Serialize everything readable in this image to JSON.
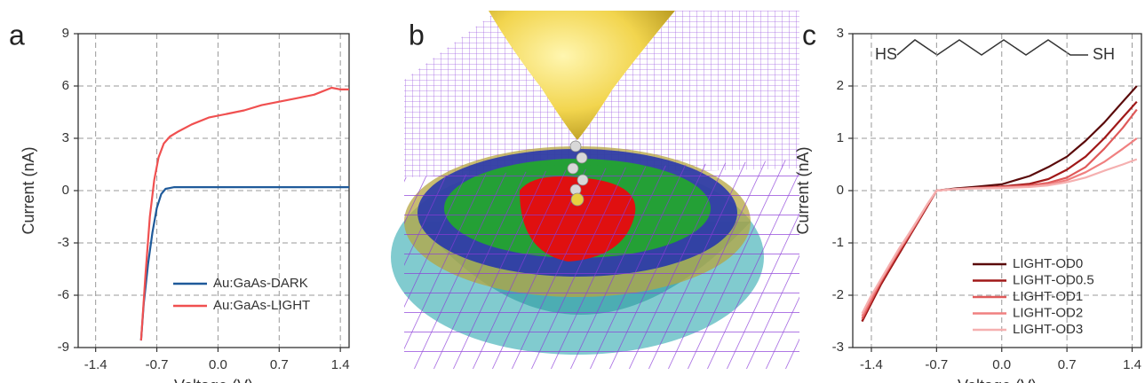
{
  "chart_data": [
    {
      "type": "line",
      "panel_label": "a",
      "x_label": "Voltage (V)",
      "y_label": "Current (nA)",
      "xlim": [
        -1.6,
        1.5
      ],
      "ylim": [
        -9,
        9
      ],
      "xticks": [
        -1.4,
        -0.7,
        {
          "value": 0,
          "label": "0.0"
        },
        0.7,
        1.4
      ],
      "yticks": [
        -9,
        -6,
        -3,
        0,
        3,
        6,
        9
      ],
      "grid": true,
      "legend": "lower right",
      "series": [
        {
          "name": "Au:GaAs-DARK",
          "color": "#1f5a9a",
          "x": [
            -0.88,
            -0.85,
            -0.8,
            -0.75,
            -0.7,
            -0.65,
            -0.6,
            -0.55,
            -0.5,
            -0.3,
            0,
            0.5,
            1.0,
            1.5
          ],
          "values": [
            -8.6,
            -6.5,
            -4.2,
            -2.4,
            -1.0,
            -0.2,
            0.1,
            0.15,
            0.2,
            0.2,
            0.2,
            0.2,
            0.2,
            0.2
          ]
        },
        {
          "name": "Au:GaAs-LIGHT",
          "color": "#f05050",
          "x": [
            -0.88,
            -0.83,
            -0.78,
            -0.73,
            -0.68,
            -0.62,
            -0.55,
            -0.45,
            -0.3,
            -0.1,
            0.1,
            0.3,
            0.5,
            0.7,
            0.9,
            1.1,
            1.3,
            1.4,
            1.5
          ],
          "values": [
            -8.6,
            -4.8,
            -1.5,
            0.6,
            1.9,
            2.7,
            3.1,
            3.4,
            3.8,
            4.2,
            4.4,
            4.6,
            4.9,
            5.1,
            5.3,
            5.5,
            5.9,
            5.8,
            5.8
          ]
        }
      ]
    },
    {
      "type": "line",
      "panel_label": "c",
      "x_label": "Voltage (V)",
      "y_label": "Current (nA)",
      "annotations": [
        "HS",
        "SH"
      ],
      "xlim": [
        -1.6,
        1.5
      ],
      "ylim": [
        -3,
        3
      ],
      "xticks": [
        -1.4,
        -0.7,
        {
          "value": 0,
          "label": "0.0"
        },
        0.7,
        1.4
      ],
      "yticks": [
        -3,
        -2,
        -1,
        0,
        1,
        2,
        3
      ],
      "grid": true,
      "legend": "lower right",
      "x": [
        -1.5,
        -1.4,
        -1.3,
        -1.2,
        -1.1,
        -1.0,
        -0.9,
        -0.8,
        -0.7,
        -0.5,
        -0.3,
        0,
        0.3,
        0.5,
        0.7,
        0.9,
        1.1,
        1.3,
        1.45
      ],
      "series": [
        {
          "name": "LIGHT-OD0",
          "color": "#5a0a0a",
          "values": [
            -2.5,
            -2.15,
            -1.8,
            -1.5,
            -1.2,
            -0.9,
            -0.6,
            -0.3,
            0,
            0.04,
            0.07,
            0.12,
            0.28,
            0.45,
            0.65,
            0.95,
            1.3,
            1.7,
            2.0
          ]
        },
        {
          "name": "LIGHT-OD0.5",
          "color": "#a01818",
          "values": [
            -2.5,
            -2.15,
            -1.8,
            -1.5,
            -1.2,
            -0.9,
            -0.6,
            -0.3,
            0,
            0.03,
            0.05,
            0.08,
            0.13,
            0.22,
            0.4,
            0.65,
            1.0,
            1.4,
            1.7
          ]
        },
        {
          "name": "LIGHT-OD1",
          "color": "#e05a5a",
          "values": [
            -2.45,
            -2.1,
            -1.75,
            -1.45,
            -1.15,
            -0.87,
            -0.58,
            -0.28,
            0,
            0.03,
            0.05,
            0.07,
            0.1,
            0.15,
            0.25,
            0.45,
            0.8,
            1.2,
            1.55
          ]
        },
        {
          "name": "LIGHT-OD2",
          "color": "#f08080",
          "values": [
            -2.4,
            -2.05,
            -1.72,
            -1.42,
            -1.13,
            -0.85,
            -0.56,
            -0.27,
            0,
            0.03,
            0.05,
            0.06,
            0.08,
            0.12,
            0.2,
            0.35,
            0.55,
            0.8,
            1.0
          ]
        },
        {
          "name": "LIGHT-OD3",
          "color": "#f5b0b0",
          "values": [
            -2.35,
            -2.0,
            -1.7,
            -1.4,
            -1.1,
            -0.83,
            -0.55,
            -0.26,
            0,
            0.03,
            0.04,
            0.05,
            0.07,
            0.1,
            0.16,
            0.25,
            0.38,
            0.5,
            0.6
          ]
        }
      ]
    }
  ],
  "illustration": {
    "panel_label": "b"
  }
}
